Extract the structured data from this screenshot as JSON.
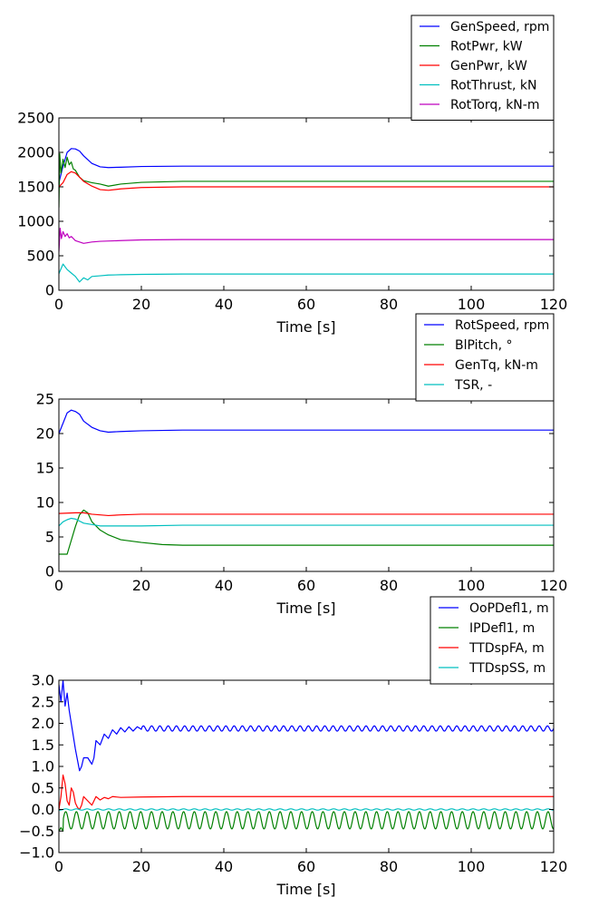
{
  "chart_data": [
    {
      "type": "line",
      "xlabel": "Time [s]",
      "ylabel": "",
      "xlim": [
        0,
        120
      ],
      "ylim": [
        0,
        2500
      ],
      "x_ticks": [
        "0",
        "20",
        "40",
        "60",
        "80",
        "100",
        "120"
      ],
      "y_ticks": [
        "0",
        "500",
        "1000",
        "1500",
        "2000",
        "2500"
      ],
      "legend_position": "above-right",
      "series": [
        {
          "name": "GenSpeed, rpm",
          "color": "#0000ff",
          "x": [
            0,
            1,
            2,
            3,
            4,
            5,
            6,
            8,
            10,
            12,
            15,
            20,
            30,
            120
          ],
          "y": [
            1560,
            1800,
            2000,
            2055,
            2050,
            2020,
            1950,
            1840,
            1790,
            1780,
            1785,
            1795,
            1800,
            1800
          ]
        },
        {
          "name": "RotPwr, kW",
          "color": "#008000",
          "x": [
            0,
            0.2,
            0.5,
            1,
            1.5,
            2,
            2.5,
            3,
            3.5,
            4,
            5,
            6,
            8,
            10,
            12,
            15,
            20,
            30,
            120
          ],
          "y": [
            1200,
            1980,
            1700,
            1900,
            1780,
            1930,
            1820,
            1860,
            1760,
            1740,
            1640,
            1590,
            1560,
            1540,
            1510,
            1540,
            1565,
            1580,
            1580
          ]
        },
        {
          "name": "GenPwr, kW",
          "color": "#ff0000",
          "x": [
            0,
            1,
            2,
            3,
            4,
            5,
            6,
            8,
            10,
            12,
            15,
            20,
            30,
            120
          ],
          "y": [
            1500,
            1560,
            1680,
            1720,
            1700,
            1640,
            1580,
            1510,
            1460,
            1450,
            1470,
            1490,
            1500,
            1500
          ]
        },
        {
          "name": "RotThrust, kN",
          "color": "#00bfbf",
          "x": [
            0,
            1,
            2,
            3,
            4,
            5,
            6,
            7,
            8,
            10,
            12,
            15,
            20,
            30,
            120
          ],
          "y": [
            240,
            380,
            300,
            250,
            200,
            120,
            180,
            150,
            200,
            210,
            220,
            225,
            230,
            235,
            235
          ]
        },
        {
          "name": "RotTorq, kN-m",
          "color": "#bf00bf",
          "x": [
            0,
            0.3,
            0.6,
            1,
            1.5,
            2,
            2.5,
            3,
            4,
            5,
            6,
            8,
            10,
            15,
            20,
            30,
            120
          ],
          "y": [
            560,
            900,
            750,
            850,
            780,
            820,
            760,
            780,
            720,
            700,
            680,
            700,
            710,
            720,
            730,
            735,
            735
          ]
        }
      ]
    },
    {
      "type": "line",
      "xlabel": "Time [s]",
      "ylabel": "",
      "xlim": [
        0,
        120
      ],
      "ylim": [
        0,
        25
      ],
      "x_ticks": [
        "0",
        "20",
        "40",
        "60",
        "80",
        "100",
        "120"
      ],
      "y_ticks": [
        "0",
        "5",
        "10",
        "15",
        "20",
        "25"
      ],
      "legend_position": "above-right",
      "series": [
        {
          "name": "RotSpeed, rpm",
          "color": "#0000ff",
          "x": [
            0,
            1,
            2,
            3,
            4,
            5,
            6,
            8,
            10,
            12,
            15,
            20,
            30,
            120
          ],
          "y": [
            20.0,
            21.5,
            23.0,
            23.4,
            23.2,
            22.8,
            21.8,
            20.9,
            20.4,
            20.2,
            20.3,
            20.4,
            20.5,
            20.5
          ]
        },
        {
          "name": "BlPitch, °",
          "color": "#008000",
          "x": [
            0,
            2,
            4,
            5,
            6,
            7,
            8,
            10,
            12,
            15,
            20,
            25,
            30,
            120
          ],
          "y": [
            2.5,
            2.5,
            6.5,
            8.2,
            8.9,
            8.5,
            7.2,
            6.0,
            5.3,
            4.6,
            4.2,
            3.9,
            3.8,
            3.8
          ]
        },
        {
          "name": "GenTq, kN-m",
          "color": "#ff0000",
          "x": [
            0,
            4,
            6,
            8,
            12,
            15,
            20,
            30,
            120
          ],
          "y": [
            8.4,
            8.5,
            8.5,
            8.3,
            8.1,
            8.2,
            8.3,
            8.3,
            8.3
          ]
        },
        {
          "name": "TSR, -",
          "color": "#00bfbf",
          "x": [
            0,
            1,
            2,
            3,
            4,
            5,
            6,
            8,
            10,
            15,
            20,
            30,
            120
          ],
          "y": [
            6.6,
            7.2,
            7.5,
            7.7,
            7.6,
            7.3,
            7.0,
            6.8,
            6.6,
            6.6,
            6.6,
            6.7,
            6.7
          ]
        }
      ]
    },
    {
      "type": "line",
      "xlabel": "Time [s]",
      "ylabel": "",
      "xlim": [
        0,
        120
      ],
      "ylim": [
        -1.0,
        3.0
      ],
      "x_ticks": [
        "0",
        "20",
        "40",
        "60",
        "80",
        "100",
        "120"
      ],
      "y_ticks": [
        "−1.0",
        "−0.5",
        "0.0",
        "0.5",
        "1.0",
        "1.5",
        "2.0",
        "2.5",
        "3.0"
      ],
      "legend_position": "above-right",
      "series": [
        {
          "name": "OoPDefl1, m",
          "color": "#0000ff",
          "x": [
            0,
            0.5,
            1,
            1.5,
            2,
            2.5,
            3,
            4,
            5,
            5.5,
            6,
            7,
            8,
            8.5,
            9,
            10,
            11,
            12,
            13,
            14,
            15,
            16,
            17,
            18,
            19,
            20
          ],
          "y": [
            2.9,
            2.5,
            3.0,
            2.4,
            2.7,
            2.3,
            2.0,
            1.4,
            0.9,
            1.0,
            1.2,
            1.2,
            1.05,
            1.2,
            1.6,
            1.5,
            1.75,
            1.65,
            1.85,
            1.75,
            1.9,
            1.8,
            1.92,
            1.82,
            1.92,
            1.86
          ],
          "osc": {
            "period": 2.0,
            "amplitude": 0.06,
            "mean": 1.88,
            "from": 20,
            "to": 120
          }
        },
        {
          "name": "IPDefl1, m",
          "color": "#008000",
          "x": [
            0,
            0.5,
            1
          ],
          "y": [
            -0.5,
            -0.42,
            -0.5
          ],
          "osc": {
            "period": 2.6,
            "amplitude": 0.2,
            "mean": -0.25,
            "from": 1,
            "to": 120
          }
        },
        {
          "name": "TTDspFA, m",
          "color": "#ff0000",
          "x": [
            0,
            0.5,
            1,
            1.5,
            2,
            2.5,
            3,
            3.5,
            4,
            4.5,
            5,
            5.5,
            6,
            7,
            8,
            9,
            10,
            11,
            12,
            13,
            15,
            20,
            30,
            120
          ],
          "y": [
            0.0,
            0.3,
            0.8,
            0.6,
            0.2,
            0.1,
            0.5,
            0.4,
            0.15,
            0.05,
            0.0,
            0.1,
            0.3,
            0.2,
            0.1,
            0.3,
            0.22,
            0.28,
            0.25,
            0.3,
            0.28,
            0.29,
            0.3,
            0.3
          ]
        },
        {
          "name": "TTDspSS, m",
          "color": "#00bfbf",
          "x": [
            0,
            1
          ],
          "y": [
            -0.02,
            0.0
          ],
          "osc": {
            "period": 2.6,
            "amplitude": 0.015,
            "mean": 0.0,
            "from": 1,
            "to": 120
          }
        }
      ]
    }
  ]
}
